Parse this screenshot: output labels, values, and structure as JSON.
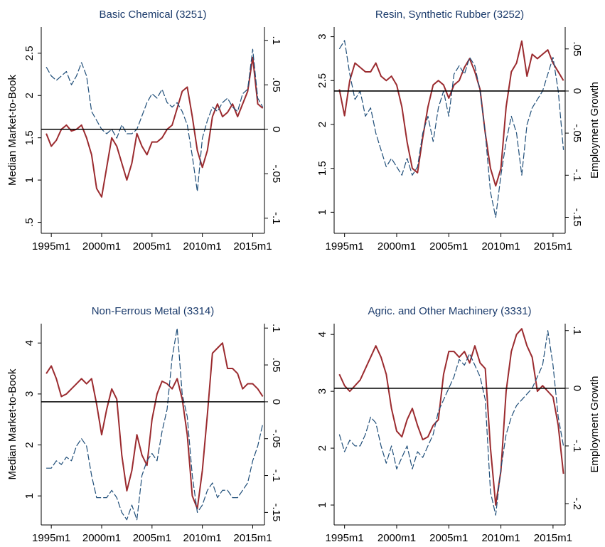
{
  "chart_data": [
    {
      "type": "line",
      "title": "Basic Chemical (3251)",
      "ylabel": "Median Market-to-Book",
      "x": [
        "1994m7",
        "1995m1",
        "1995m7",
        "1996m1",
        "1996m7",
        "1997m1",
        "1997m7",
        "1998m1",
        "1998m7",
        "1999m1",
        "1999m7",
        "2000m1",
        "2000m7",
        "2001m1",
        "2001m7",
        "2002m1",
        "2002m7",
        "2003m1",
        "2003m7",
        "2004m1",
        "2004m7",
        "2005m1",
        "2005m7",
        "2006m1",
        "2006m7",
        "2007m1",
        "2007m7",
        "2008m1",
        "2008m7",
        "2009m1",
        "2009m7",
        "2010m1",
        "2010m7",
        "2011m1",
        "2011m7",
        "2012m1",
        "2012m7",
        "2013m1",
        "2013m7",
        "2014m1",
        "2014m7",
        "2015m1",
        "2015m7",
        "2016m1"
      ],
      "xlim": [
        "1994m1",
        "2016m3"
      ],
      "xticks": [
        "1995m1",
        "2000m1",
        "2005m1",
        "2010m1",
        "2015m1"
      ],
      "ylim": [
        0.37,
        2.81
      ],
      "yticks": [
        {
          "value": 0.5,
          "label": ".5"
        },
        1,
        1.5,
        2,
        2.5
      ],
      "y2lim": [
        -0.117,
        0.115
      ],
      "y2ticks": [
        {
          "value": -0.1,
          "label": "-.1"
        },
        {
          "value": -0.05,
          "label": "-.05"
        },
        0,
        {
          "value": 0.05,
          "label": ".05"
        },
        {
          "value": 0.1,
          "label": ".1"
        }
      ],
      "zero_line": true,
      "series": [
        {
          "color": "#9b2b2f",
          "line_style": "solid",
          "values": [
            1.55,
            1.4,
            1.47,
            1.6,
            1.65,
            1.58,
            1.6,
            1.65,
            1.5,
            1.3,
            0.9,
            0.8,
            1.15,
            1.5,
            1.4,
            1.2,
            1.0,
            1.2,
            1.55,
            1.4,
            1.3,
            1.45,
            1.45,
            1.5,
            1.6,
            1.65,
            1.85,
            2.05,
            2.1,
            1.75,
            1.35,
            1.15,
            1.35,
            1.75,
            1.9,
            1.75,
            1.8,
            1.9,
            1.75,
            1.9,
            2.05,
            2.45,
            1.9,
            1.85
          ]
        },
        {
          "color": "#1f4e79",
          "line_style": "dashed",
          "axis": "y2",
          "values": [
            0.07,
            0.06,
            0.055,
            0.06,
            0.065,
            0.05,
            0.06,
            0.075,
            0.06,
            0.02,
            0.01,
            0.0,
            -0.005,
            0.0,
            -0.01,
            0.005,
            -0.005,
            -0.005,
            0.0,
            0.015,
            0.03,
            0.04,
            0.035,
            0.045,
            0.03,
            0.025,
            0.03,
            0.02,
            0.005,
            -0.03,
            -0.07,
            -0.01,
            0.01,
            0.025,
            0.02,
            0.03,
            0.035,
            0.025,
            0.02,
            0.04,
            0.045,
            0.09,
            0.035,
            0.025
          ]
        }
      ]
    },
    {
      "type": "line",
      "title": "Resin, Synthetic Rubber (3252)",
      "y2label": "Employment Growth",
      "x": [
        "1994m7",
        "1995m1",
        "1995m7",
        "1996m1",
        "1996m7",
        "1997m1",
        "1997m7",
        "1998m1",
        "1998m7",
        "1999m1",
        "1999m7",
        "2000m1",
        "2000m7",
        "2001m1",
        "2001m7",
        "2002m1",
        "2002m7",
        "2003m1",
        "2003m7",
        "2004m1",
        "2004m7",
        "2005m1",
        "2005m7",
        "2006m1",
        "2006m7",
        "2007m1",
        "2007m7",
        "2008m1",
        "2008m7",
        "2009m1",
        "2009m7",
        "2010m1",
        "2010m7",
        "2011m1",
        "2011m7",
        "2012m1",
        "2012m7",
        "2013m1",
        "2013m7",
        "2014m1",
        "2014m7",
        "2015m1",
        "2015m7",
        "2016m1"
      ],
      "xlim": [
        "1994m1",
        "2016m3"
      ],
      "xticks": [
        "1995m1",
        "2000m1",
        "2005m1",
        "2010m1",
        "2015m1"
      ],
      "ylim": [
        0.76,
        3.11
      ],
      "yticks": [
        1,
        1.5,
        2,
        2.5,
        3
      ],
      "y2lim": [
        -0.169,
        0.076
      ],
      "y2ticks": [
        {
          "value": -0.15,
          "label": "-.15"
        },
        {
          "value": -0.1,
          "label": "-.1"
        },
        {
          "value": -0.05,
          "label": "-.05"
        },
        0,
        {
          "value": 0.05,
          "label": ".05"
        }
      ],
      "zero_line": true,
      "series": [
        {
          "color": "#9b2b2f",
          "line_style": "solid",
          "values": [
            2.4,
            2.1,
            2.5,
            2.7,
            2.65,
            2.6,
            2.6,
            2.7,
            2.55,
            2.5,
            2.55,
            2.45,
            2.2,
            1.8,
            1.5,
            1.45,
            1.85,
            2.2,
            2.45,
            2.5,
            2.45,
            2.3,
            2.45,
            2.5,
            2.65,
            2.75,
            2.6,
            2.4,
            1.9,
            1.5,
            1.3,
            1.5,
            2.2,
            2.6,
            2.7,
            2.95,
            2.55,
            2.8,
            2.75,
            2.8,
            2.85,
            2.7,
            2.6,
            2.5
          ]
        },
        {
          "color": "#1f4e79",
          "line_style": "dashed",
          "axis": "y2",
          "values": [
            0.05,
            0.06,
            0.02,
            -0.01,
            0.0,
            -0.03,
            -0.02,
            -0.05,
            -0.07,
            -0.09,
            -0.08,
            -0.09,
            -0.1,
            -0.08,
            -0.1,
            -0.09,
            -0.05,
            -0.03,
            -0.06,
            -0.02,
            0.0,
            -0.03,
            0.02,
            0.03,
            0.02,
            0.04,
            0.03,
            0.0,
            -0.05,
            -0.12,
            -0.15,
            -0.1,
            -0.06,
            -0.03,
            -0.05,
            -0.1,
            -0.04,
            -0.02,
            -0.01,
            0.0,
            0.02,
            0.04,
            0.0,
            -0.07
          ]
        }
      ]
    },
    {
      "type": "line",
      "title": "Non-Ferrous Metal (3314)",
      "ylabel": "Median Market-to-Book",
      "x": [
        "1994m7",
        "1995m1",
        "1995m7",
        "1996m1",
        "1996m7",
        "1997m1",
        "1997m7",
        "1998m1",
        "1998m7",
        "1999m1",
        "1999m7",
        "2000m1",
        "2000m7",
        "2001m1",
        "2001m7",
        "2002m1",
        "2002m7",
        "2003m1",
        "2003m7",
        "2004m1",
        "2004m7",
        "2005m1",
        "2005m7",
        "2006m1",
        "2006m7",
        "2007m1",
        "2007m7",
        "2008m1",
        "2008m7",
        "2009m1",
        "2009m7",
        "2010m1",
        "2010m7",
        "2011m1",
        "2011m7",
        "2012m1",
        "2012m7",
        "2013m1",
        "2013m7",
        "2014m1",
        "2014m7",
        "2015m1",
        "2015m7",
        "2016m1"
      ],
      "xlim": [
        "1994m1",
        "2016m3"
      ],
      "xticks": [
        "1995m1",
        "2000m1",
        "2005m1",
        "2010m1",
        "2015m1"
      ],
      "ylim": [
        0.43,
        4.38
      ],
      "yticks": [
        1,
        2,
        3,
        4
      ],
      "y2lim": [
        -0.167,
        0.106
      ],
      "y2ticks": [
        {
          "value": -0.15,
          "label": "-.15"
        },
        {
          "value": -0.1,
          "label": "-.1"
        },
        {
          "value": -0.05,
          "label": "-.05"
        },
        0,
        {
          "value": 0.05,
          "label": ".05"
        },
        {
          "value": 0.1,
          "label": ".1"
        }
      ],
      "zero_line": true,
      "series": [
        {
          "color": "#9b2b2f",
          "line_style": "solid",
          "values": [
            3.4,
            3.55,
            3.3,
            2.95,
            3.0,
            3.1,
            3.2,
            3.3,
            3.2,
            3.3,
            2.8,
            2.2,
            2.7,
            3.1,
            2.9,
            1.8,
            1.1,
            1.5,
            2.2,
            1.8,
            1.6,
            2.5,
            3.0,
            3.25,
            3.2,
            3.1,
            3.3,
            2.9,
            2.2,
            1.0,
            0.75,
            1.5,
            2.6,
            3.8,
            3.9,
            4.0,
            3.5,
            3.5,
            3.4,
            3.1,
            3.2,
            3.2,
            3.1,
            2.95
          ]
        },
        {
          "color": "#1f4e79",
          "line_style": "dashed",
          "axis": "y2",
          "values": [
            -0.09,
            -0.09,
            -0.08,
            -0.085,
            -0.075,
            -0.08,
            -0.06,
            -0.05,
            -0.06,
            -0.1,
            -0.13,
            -0.13,
            -0.13,
            -0.12,
            -0.13,
            -0.15,
            -0.16,
            -0.14,
            -0.16,
            -0.1,
            -0.08,
            -0.07,
            -0.08,
            -0.04,
            -0.01,
            0.06,
            0.1,
            0.01,
            -0.02,
            -0.1,
            -0.15,
            -0.14,
            -0.12,
            -0.11,
            -0.13,
            -0.12,
            -0.12,
            -0.13,
            -0.13,
            -0.12,
            -0.11,
            -0.08,
            -0.06,
            -0.03
          ]
        }
      ]
    },
    {
      "type": "line",
      "title": "Agric. and Other Machinery  (3331)",
      "y2label": "Employment Growth",
      "x": [
        "1994m7",
        "1995m1",
        "1995m7",
        "1996m1",
        "1996m7",
        "1997m1",
        "1997m7",
        "1998m1",
        "1998m7",
        "1999m1",
        "1999m7",
        "2000m1",
        "2000m7",
        "2001m1",
        "2001m7",
        "2002m1",
        "2002m7",
        "2003m1",
        "2003m7",
        "2004m1",
        "2004m7",
        "2005m1",
        "2005m7",
        "2006m1",
        "2006m7",
        "2007m1",
        "2007m7",
        "2008m1",
        "2008m7",
        "2009m1",
        "2009m7",
        "2010m1",
        "2010m7",
        "2011m1",
        "2011m7",
        "2012m1",
        "2012m7",
        "2013m1",
        "2013m7",
        "2014m1",
        "2014m7",
        "2015m1",
        "2015m7",
        "2016m1"
      ],
      "xlim": [
        "1994m1",
        "2016m3"
      ],
      "xticks": [
        "1995m1",
        "2000m1",
        "2005m1",
        "2010m1",
        "2015m1"
      ],
      "ylim": [
        0.65,
        4.19
      ],
      "yticks": [
        1,
        2,
        3,
        4
      ],
      "y2lim": [
        -0.237,
        0.112
      ],
      "y2ticks": [
        {
          "value": -0.2,
          "label": "-.2"
        },
        {
          "value": -0.1,
          "label": "-.1"
        },
        0,
        {
          "value": 0.1,
          "label": ".1"
        }
      ],
      "zero_line": true,
      "series": [
        {
          "color": "#9b2b2f",
          "line_style": "solid",
          "values": [
            3.3,
            3.1,
            3.0,
            3.1,
            3.2,
            3.4,
            3.6,
            3.8,
            3.6,
            3.3,
            2.7,
            2.3,
            2.2,
            2.5,
            2.7,
            2.4,
            2.15,
            2.2,
            2.4,
            2.5,
            3.3,
            3.7,
            3.7,
            3.6,
            3.7,
            3.5,
            3.8,
            3.5,
            3.4,
            2.0,
            1.0,
            1.6,
            3.0,
            3.7,
            4.0,
            4.1,
            3.8,
            3.6,
            3.0,
            3.1,
            3.0,
            2.9,
            2.4,
            1.55
          ]
        },
        {
          "color": "#1f4e79",
          "line_style": "dashed",
          "axis": "y2",
          "values": [
            -0.08,
            -0.11,
            -0.09,
            -0.1,
            -0.1,
            -0.08,
            -0.05,
            -0.06,
            -0.1,
            -0.13,
            -0.1,
            -0.14,
            -0.12,
            -0.1,
            -0.14,
            -0.11,
            -0.12,
            -0.1,
            -0.08,
            -0.04,
            -0.02,
            0.0,
            0.02,
            0.05,
            0.04,
            0.06,
            0.04,
            0.02,
            -0.02,
            -0.18,
            -0.22,
            -0.14,
            -0.08,
            -0.05,
            -0.03,
            -0.02,
            -0.01,
            0.0,
            0.02,
            0.04,
            0.1,
            0.04,
            -0.05,
            -0.1
          ]
        }
      ]
    }
  ]
}
